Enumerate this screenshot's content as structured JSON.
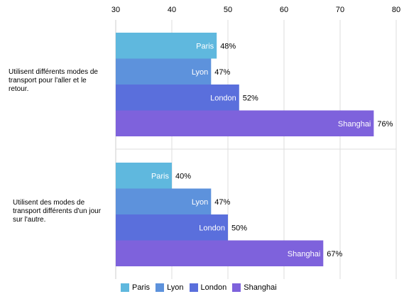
{
  "chart_data": {
    "type": "bar",
    "orientation": "horizontal",
    "xlim": [
      30,
      80
    ],
    "x_ticks": [
      "30",
      "40",
      "50",
      "60",
      "70",
      "80"
    ],
    "grid": true,
    "legend_position": "bottom",
    "categories": [
      "Utilisent différents modes de transport pour l'aller et le retour.",
      "Utilisent des modes de transport différents d'un jour sur l'autre."
    ],
    "category_lines": [
      [
        "Utilisent différents modes de",
        "transport pour l'aller et le",
        "retour."
      ],
      [
        "Utilisent des modes de",
        "transport différents d'un jour",
        "sur l'autre."
      ]
    ],
    "series": [
      {
        "name": "Paris",
        "values": [
          48,
          40
        ],
        "labels": [
          "48%",
          "40%"
        ],
        "color": "#5fb8de"
      },
      {
        "name": "Lyon",
        "values": [
          47,
          47
        ],
        "labels": [
          "47%",
          "47%"
        ],
        "color": "#5d92dc"
      },
      {
        "name": "London",
        "values": [
          52,
          50
        ],
        "labels": [
          "52%",
          "50%"
        ],
        "color": "#5a6fdc"
      },
      {
        "name": "Shanghai",
        "values": [
          76,
          67
        ],
        "labels": [
          "76%",
          "67%"
        ],
        "color": "#7e62dc"
      }
    ]
  }
}
